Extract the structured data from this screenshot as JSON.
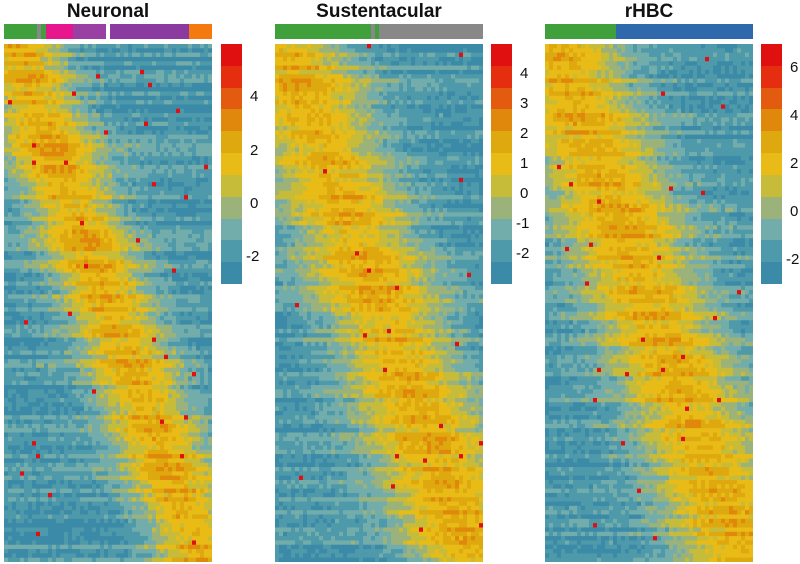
{
  "colors": {
    "scale": [
      "#3a8aa8",
      "#4e99aa",
      "#73adab",
      "#9bb27a",
      "#c7bc3a",
      "#e8bb17",
      "#dea90e",
      "#e0880c",
      "#e35b0e",
      "#e52e0f",
      "#e01010"
    ]
  },
  "chart_data": [
    {
      "type": "heatmap",
      "title": "Neuronal",
      "annotation_colors": [
        "#3fa03c",
        "#888888",
        "#3fa03c",
        "#e8168c",
        "#9a3fa3",
        "#ffffff",
        "#8b3aa0",
        "#f47a10"
      ],
      "annotation_widths": [
        0.16,
        0.02,
        0.02,
        0.13,
        0.16,
        0.02,
        0.38,
        0.11
      ],
      "legend_ticks": [
        "4",
        "2",
        "0",
        "-2"
      ],
      "legend_tick_values": [
        4,
        2,
        0,
        -2
      ],
      "scale_range": [
        -3,
        6
      ],
      "pattern": "diagonal band from top-left to bottom-right"
    },
    {
      "type": "heatmap",
      "title": "Sustentacular",
      "annotation_colors": [
        "#3fa03c",
        "#888888",
        "#3fa03c",
        "#888888"
      ],
      "annotation_widths": [
        0.46,
        0.02,
        0.02,
        0.5
      ],
      "legend_ticks": [
        "4",
        "3",
        "2",
        "1",
        "0",
        "-1",
        "-2"
      ],
      "legend_tick_values": [
        4,
        3,
        2,
        1,
        0,
        -1,
        -2
      ],
      "scale_range": [
        -3,
        5
      ],
      "pattern": "diagonal band from top-left to bottom-right"
    },
    {
      "type": "heatmap",
      "title": "rHBC",
      "annotation_colors": [
        "#3fa03c",
        "#2f69ac"
      ],
      "annotation_widths": [
        0.34,
        0.66
      ],
      "legend_ticks": [
        "6",
        "4",
        "2",
        "0",
        "-2"
      ],
      "legend_tick_values": [
        6,
        4,
        2,
        0,
        -2
      ],
      "scale_range": [
        -3,
        7
      ],
      "pattern": "diagonal band from top-left to bottom-right"
    }
  ]
}
